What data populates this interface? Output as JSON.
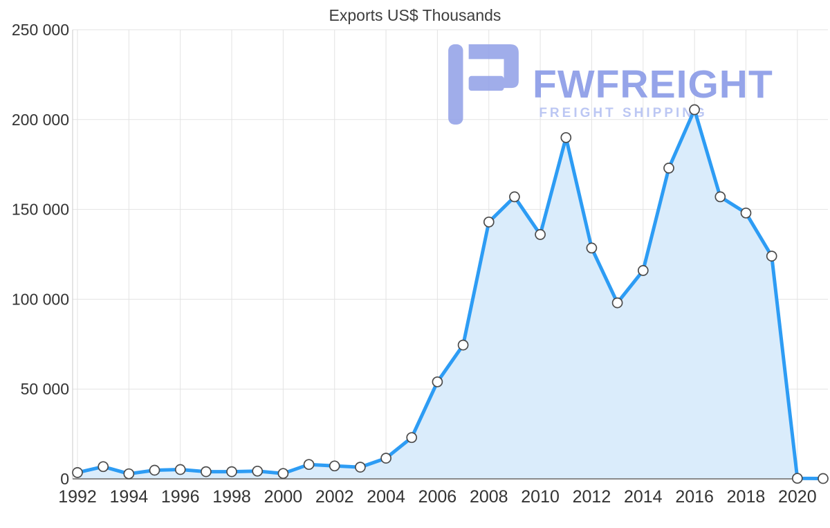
{
  "title": "Exports US$ Thousands",
  "watermark": {
    "brand": "FWFREIGHT",
    "tagline": "FREIGHT SHIPPING"
  },
  "colors": {
    "line": "#2d9cf4",
    "fill": "#daecfb",
    "marker_fill": "#ffffff",
    "marker_stroke": "#4b4b4b",
    "grid": "#e3e3e3",
    "axis": "#c9c9c9",
    "baseline": "#8a8a8a",
    "text": "#333333",
    "watermark_primary": "#8798e6",
    "watermark_secondary": "#b3c0f2"
  },
  "chart_data": {
    "type": "area",
    "title": "Exports US$ Thousands",
    "xlabel": "",
    "ylabel": "",
    "legend": "none",
    "grid": true,
    "ylim": [
      0,
      250000
    ],
    "y_ticks": [
      {
        "value": 0,
        "label": "0"
      },
      {
        "value": 50000,
        "label": "50 000"
      },
      {
        "value": 100000,
        "label": "100 000"
      },
      {
        "value": 150000,
        "label": "150 000"
      },
      {
        "value": 200000,
        "label": "200 000"
      },
      {
        "value": 250000,
        "label": "250 000"
      }
    ],
    "x_tick_years": [
      1992,
      1994,
      1996,
      1998,
      2000,
      2002,
      2004,
      2006,
      2008,
      2010,
      2012,
      2014,
      2016,
      2018,
      2020
    ],
    "x": [
      1992,
      1993,
      1994,
      1995,
      1996,
      1997,
      1998,
      1999,
      2000,
      2001,
      2002,
      2003,
      2004,
      2005,
      2006,
      2007,
      2008,
      2009,
      2010,
      2011,
      2012,
      2013,
      2014,
      2015,
      2016,
      2017,
      2018,
      2019,
      2020,
      2021
    ],
    "values": [
      3500,
      6800,
      2800,
      4800,
      5200,
      4000,
      4000,
      4300,
      3000,
      8000,
      7200,
      6500,
      11500,
      23000,
      54000,
      74500,
      143000,
      157000,
      136000,
      190000,
      128500,
      98000,
      116000,
      173000,
      205500,
      157000,
      148000,
      124000,
      300,
      200
    ]
  }
}
